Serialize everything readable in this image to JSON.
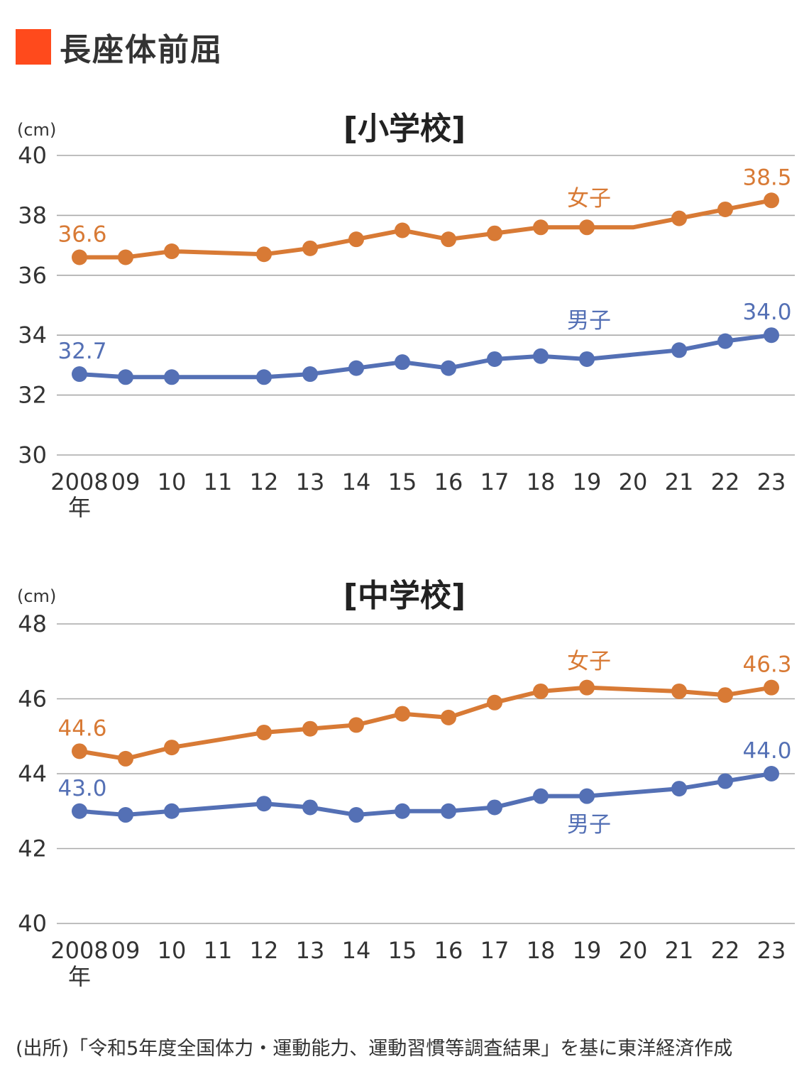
{
  "header": {
    "title": "長座体前屈",
    "accent_color": "#ff4a1c"
  },
  "chart_data": [
    {
      "type": "line",
      "title": "[小学校]",
      "unit": "(cm)",
      "ylim": [
        30,
        40
      ],
      "yticks": [
        "30",
        "32",
        "34",
        "36",
        "38",
        "40"
      ],
      "xticks": [
        "2008",
        "09",
        "10",
        "11",
        "12",
        "13",
        "14",
        "15",
        "16",
        "17",
        "18",
        "19",
        "20",
        "21",
        "22",
        "23"
      ],
      "x_suffix": "年",
      "grid": true,
      "series": [
        {
          "name": "女子",
          "color": "#d87a35",
          "values": [
            36.6,
            36.6,
            36.8,
            null,
            36.7,
            36.9,
            37.2,
            37.5,
            37.2,
            37.4,
            37.6,
            37.6,
            37.6,
            37.9,
            38.2,
            38.5
          ],
          "markers": [
            true,
            true,
            true,
            false,
            true,
            true,
            true,
            true,
            true,
            true,
            true,
            true,
            false,
            true,
            true,
            true
          ],
          "first_label": "36.6",
          "last_label": "38.5"
        },
        {
          "name": "男子",
          "color": "#5470b5",
          "values": [
            32.7,
            32.6,
            32.6,
            null,
            32.6,
            32.7,
            32.9,
            33.1,
            32.9,
            33.2,
            33.3,
            33.2,
            null,
            33.5,
            33.8,
            34.0
          ],
          "markers": [
            true,
            true,
            true,
            false,
            true,
            true,
            true,
            true,
            true,
            true,
            true,
            true,
            false,
            true,
            true,
            true
          ],
          "first_label": "32.7",
          "last_label": "34.0"
        }
      ]
    },
    {
      "type": "line",
      "title": "[中学校]",
      "unit": "(cm)",
      "ylim": [
        40,
        48
      ],
      "yticks": [
        "40",
        "42",
        "44",
        "46",
        "48"
      ],
      "xticks": [
        "2008",
        "09",
        "10",
        "11",
        "12",
        "13",
        "14",
        "15",
        "16",
        "17",
        "18",
        "19",
        "20",
        "21",
        "22",
        "23"
      ],
      "x_suffix": "年",
      "grid": true,
      "series": [
        {
          "name": "女子",
          "color": "#d87a35",
          "values": [
            44.6,
            44.4,
            44.7,
            null,
            45.1,
            45.2,
            45.3,
            45.6,
            45.5,
            45.9,
            46.2,
            46.3,
            null,
            46.2,
            46.1,
            46.3
          ],
          "markers": [
            true,
            true,
            true,
            false,
            true,
            true,
            true,
            true,
            true,
            true,
            true,
            true,
            false,
            true,
            true,
            true
          ],
          "first_label": "44.6",
          "last_label": "46.3"
        },
        {
          "name": "男子",
          "color": "#5470b5",
          "values": [
            43.0,
            42.9,
            43.0,
            null,
            43.2,
            43.1,
            42.9,
            43.0,
            43.0,
            43.1,
            43.4,
            43.4,
            null,
            43.6,
            43.8,
            44.0
          ],
          "markers": [
            true,
            true,
            true,
            false,
            true,
            true,
            true,
            true,
            true,
            true,
            true,
            true,
            false,
            true,
            true,
            true
          ],
          "first_label": "43.0",
          "last_label": "44.0"
        }
      ]
    }
  ],
  "footer": {
    "source": "(出所)「令和5年度全国体力・運動能力、運動習慣等調査結果」を基に東洋経済作成"
  }
}
